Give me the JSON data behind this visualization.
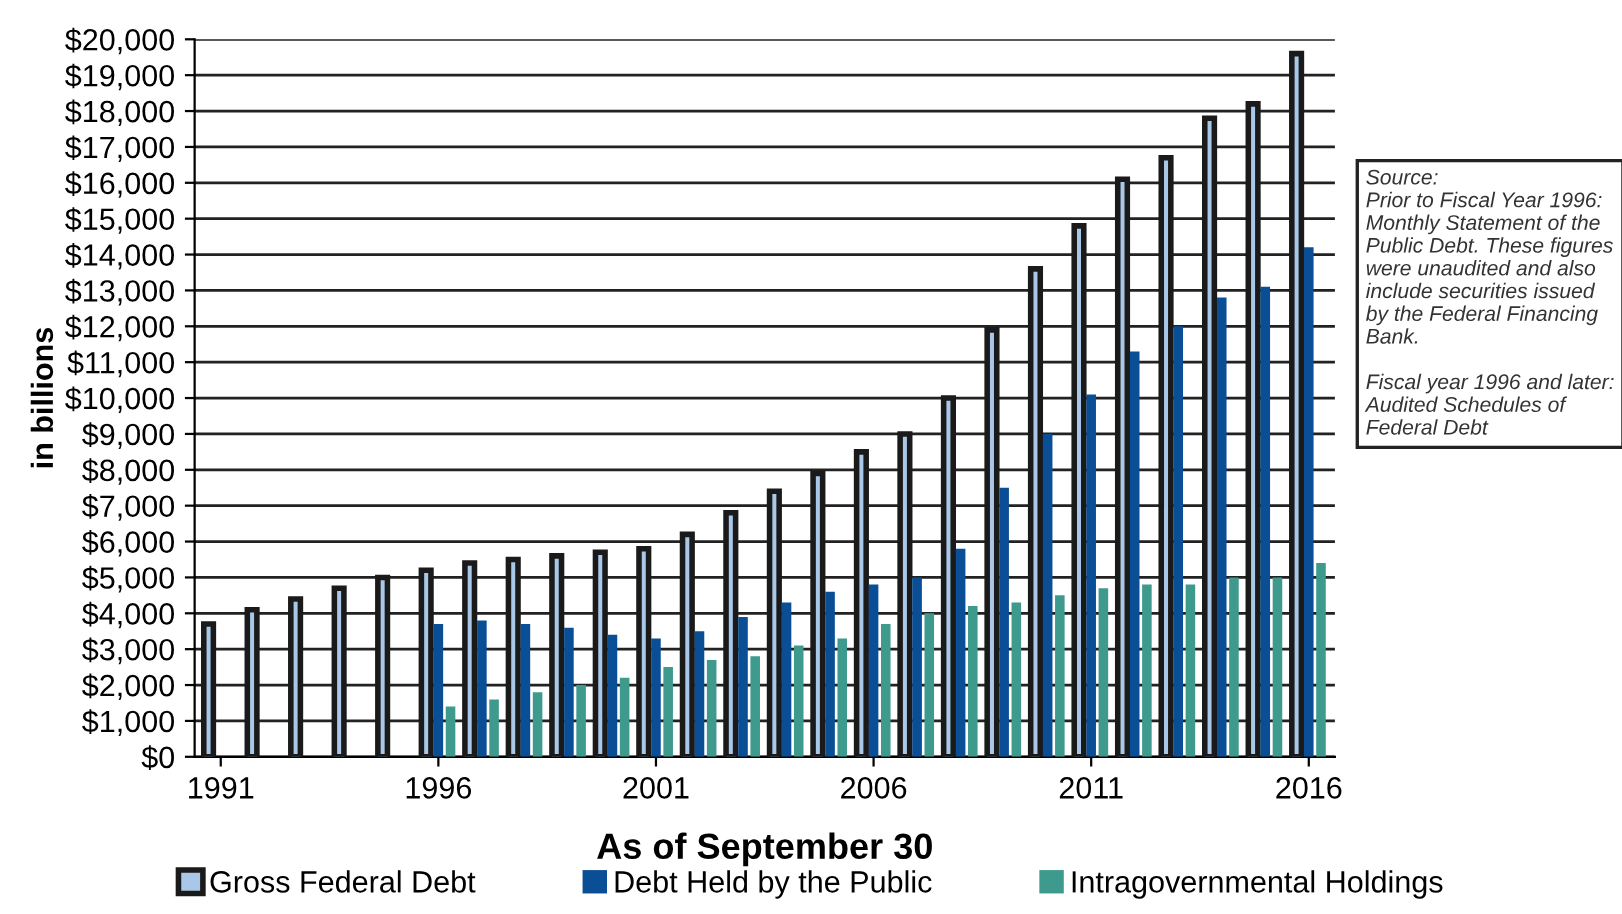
{
  "chart_data": {
    "type": "bar",
    "xlabel": "As of September 30",
    "ylabel": "in billions",
    "categories": [
      "1991",
      null,
      null,
      null,
      null,
      "1996",
      null,
      null,
      null,
      null,
      "2001",
      null,
      null,
      null,
      null,
      "2006",
      null,
      null,
      null,
      null,
      "2011",
      null,
      null,
      null,
      null,
      "2016"
    ],
    "series": [
      {
        "name": "Gross Federal Debt",
        "color": "#a9c8e8",
        "values": [
          3700,
          4100,
          4400,
          4700,
          5000,
          5200,
          5400,
          5500,
          5600,
          5700,
          5800,
          6200,
          6800,
          7400,
          7900,
          8500,
          9000,
          10000,
          11900,
          13600,
          14800,
          16100,
          16700,
          17800,
          18200,
          19600
        ]
      },
      {
        "name": "Debt Held by the Public",
        "color": "#0a4f96",
        "values": [
          null,
          null,
          null,
          null,
          null,
          3700,
          3800,
          3700,
          3600,
          3400,
          3300,
          3500,
          3900,
          4300,
          4600,
          4800,
          5000,
          5800,
          7500,
          9000,
          10100,
          11300,
          12000,
          12800,
          13100,
          14200
        ]
      },
      {
        "name": "Intragovernmental Holdings",
        "color": "#3f9a8e",
        "values": [
          null,
          null,
          null,
          null,
          null,
          1400,
          1600,
          1800,
          2000,
          2200,
          2500,
          2700,
          2800,
          3100,
          3300,
          3700,
          4000,
          4200,
          4300,
          4500,
          4700,
          4800,
          4800,
          5000,
          5000,
          5400
        ]
      }
    ],
    "ylim": [
      0,
      20000
    ],
    "yticks": [
      {
        "value": 0,
        "label": "$0"
      },
      {
        "value": 1000,
        "label": "$1,000"
      },
      {
        "value": 2000,
        "label": "$2,000"
      },
      {
        "value": 3000,
        "label": "$3,000"
      },
      {
        "value": 4000,
        "label": "$4,000"
      },
      {
        "value": 5000,
        "label": "$5,000"
      },
      {
        "value": 6000,
        "label": "$6,000"
      },
      {
        "value": 7000,
        "label": "$7,000"
      },
      {
        "value": 8000,
        "label": "$8,000"
      },
      {
        "value": 9000,
        "label": "$9,000"
      },
      {
        "value": 10000,
        "label": "$10,000"
      },
      {
        "value": 11000,
        "label": "$11,000"
      },
      {
        "value": 12000,
        "label": "$12,000"
      },
      {
        "value": 13000,
        "label": "$13,000"
      },
      {
        "value": 14000,
        "label": "$14,000"
      },
      {
        "value": 15000,
        "label": "$15,000"
      },
      {
        "value": 16000,
        "label": "$16,000"
      },
      {
        "value": 17000,
        "label": "$17,000"
      },
      {
        "value": 18000,
        "label": "$18,000"
      },
      {
        "value": 19000,
        "label": "$19,000"
      },
      {
        "value": 20000,
        "label": "$20,000"
      }
    ],
    "grid": "y",
    "legend": "bottom",
    "annotations": [
      "Source:\nPrior to Fiscal Year 1996:\nMonthly Statement of the\nPublic Debt. These figures\nwere unaudited and also\ninclude securities issued\nby the Federal Financing\nBank.\n\nFiscal year 1996 and later:\nAudited Schedules of\nFederal Debt"
    ]
  }
}
